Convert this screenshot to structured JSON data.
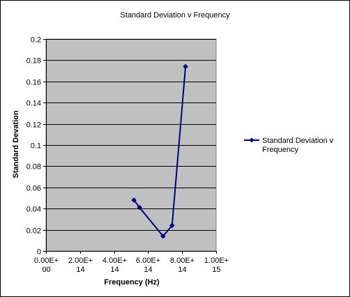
{
  "chart_data": {
    "type": "scatter",
    "title": "Standard Deviation v Frequency",
    "xlabel": "Frequency (Hz)",
    "ylabel": "Standard Devation",
    "xlim": [
      0,
      1000000000000000.0
    ],
    "ylim": [
      0,
      0.2
    ],
    "x_ticks": [
      {
        "value": 0,
        "line1": "0.00E+",
        "line2": "00"
      },
      {
        "value": 200000000000000.0,
        "line1": "2.00E+",
        "line2": "14"
      },
      {
        "value": 400000000000000.0,
        "line1": "4.00E+",
        "line2": "14"
      },
      {
        "value": 600000000000000.0,
        "line1": "6.00E+",
        "line2": "14"
      },
      {
        "value": 800000000000000.0,
        "line1": "8.00E+",
        "line2": "14"
      },
      {
        "value": 1000000000000000.0,
        "line1": "1.00E+",
        "line2": "15"
      }
    ],
    "y_ticks": [
      {
        "value": 0,
        "label": "0"
      },
      {
        "value": 0.02,
        "label": "0.02"
      },
      {
        "value": 0.04,
        "label": "0.04"
      },
      {
        "value": 0.06,
        "label": "0.06"
      },
      {
        "value": 0.08,
        "label": "0.08"
      },
      {
        "value": 0.1,
        "label": "0.1"
      },
      {
        "value": 0.12,
        "label": "0.12"
      },
      {
        "value": 0.14,
        "label": "0.14"
      },
      {
        "value": 0.16,
        "label": "0.16"
      },
      {
        "value": 0.18,
        "label": "0.18"
      },
      {
        "value": 0.2,
        "label": "0.2"
      }
    ],
    "grid": "horizontal",
    "background": "#c0c0c0",
    "legend": "right",
    "series": [
      {
        "name": [
          "Standard Deviation v",
          "Frequency"
        ],
        "color": "#000080",
        "marker": "diamond",
        "points": [
          {
            "x": 517000000000000.0,
            "y": 0.048
          },
          {
            "x": 550000000000000.0,
            "y": 0.041
          },
          {
            "x": 688000000000000.0,
            "y": 0.014
          },
          {
            "x": 741000000000000.0,
            "y": 0.024
          },
          {
            "x": 820000000000000.0,
            "y": 0.174
          }
        ]
      }
    ]
  }
}
